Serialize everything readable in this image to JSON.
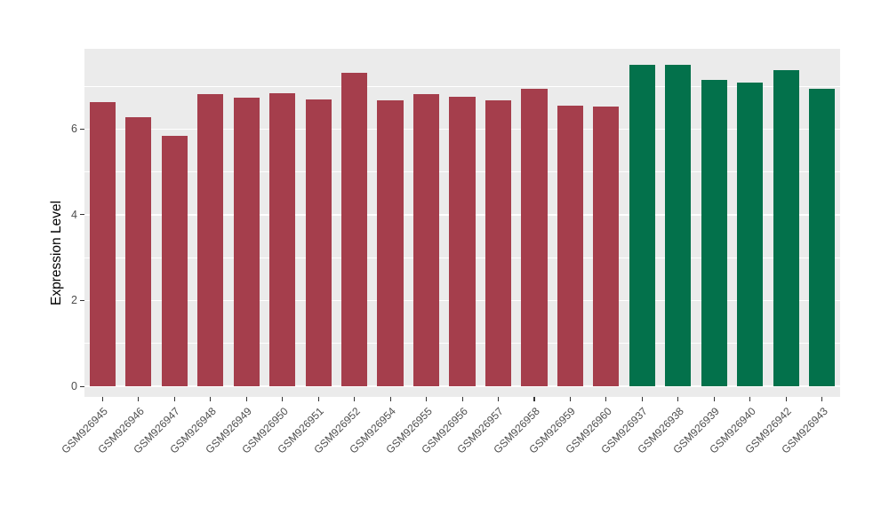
{
  "chart_data": {
    "type": "bar",
    "title": "",
    "xlabel": "",
    "ylabel": "Expression Level",
    "ylim": [
      0,
      7.87
    ],
    "yticks_major": [
      0,
      2,
      4,
      6
    ],
    "yticks_minor": [
      1,
      3,
      5,
      7
    ],
    "grid": "white major and minor horizontal gridlines on gray panel",
    "legend_position": "none",
    "categories": [
      "GSM926945",
      "GSM926946",
      "GSM926947",
      "GSM926948",
      "GSM926949",
      "GSM926950",
      "GSM926951",
      "GSM926952",
      "GSM926954",
      "GSM926955",
      "GSM926956",
      "GSM926957",
      "GSM926958",
      "GSM926959",
      "GSM926960",
      "GSM926937",
      "GSM926938",
      "GSM926939",
      "GSM926940",
      "GSM926942",
      "GSM926943"
    ],
    "values": [
      6.62,
      6.28,
      5.85,
      6.82,
      6.73,
      6.84,
      6.68,
      7.32,
      6.66,
      6.81,
      6.76,
      6.66,
      6.93,
      6.55,
      6.53,
      7.49,
      7.49,
      7.15,
      7.09,
      7.37,
      6.93
    ],
    "group_of_bar": [
      0,
      0,
      0,
      0,
      0,
      0,
      0,
      0,
      0,
      0,
      0,
      0,
      0,
      0,
      0,
      1,
      1,
      1,
      1,
      1,
      1
    ],
    "group_colors": [
      "#A53E4C",
      "#03714B"
    ],
    "ytick_labels": [
      "0",
      "2",
      "4",
      "6"
    ]
  },
  "style": {
    "panel_bg": "#EBEBEB",
    "grid_color": "#FFFFFF",
    "axis_text_color": "#4D4D4D",
    "axis_title_color": "#000000",
    "tick_color": "#333333",
    "background": "#FFFFFF"
  }
}
